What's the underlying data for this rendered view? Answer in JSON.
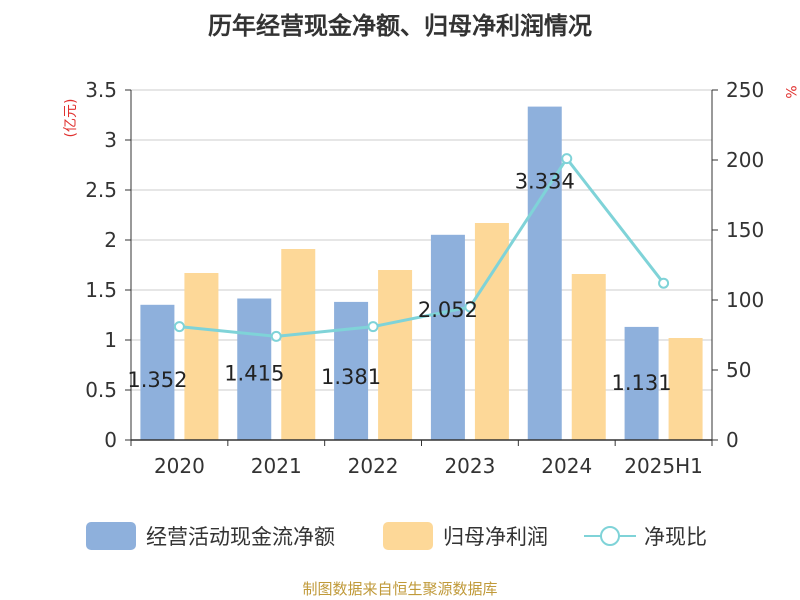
{
  "title": "历年经营现金净额、归母净利润情况",
  "source": "制图数据来自恒生聚源数据库",
  "colors": {
    "cash": "#8eb0dc",
    "profit": "#fdd898",
    "ratio": "#7fd3d8",
    "axis_unit": "#e0312f",
    "source": "#c09a3a"
  },
  "chart_data": {
    "type": "bar",
    "categories": [
      "2020",
      "2021",
      "2022",
      "2023",
      "2024",
      "2025H1"
    ],
    "left_axis": {
      "unit": "(亿元)",
      "ylim": [
        0,
        3.5
      ],
      "ticks": [
        "0",
        "0.5",
        "1",
        "1.5",
        "2",
        "2.5",
        "3",
        "3.5"
      ]
    },
    "right_axis": {
      "unit": "%",
      "ylim": [
        0,
        250
      ],
      "ticks": [
        "0",
        "50",
        "100",
        "150",
        "200",
        "250"
      ]
    },
    "series": [
      {
        "name": "经营活动现金流净额",
        "type": "bar",
        "axis": "left",
        "values": [
          1.352,
          1.415,
          1.381,
          2.052,
          3.334,
          1.131
        ],
        "labels": [
          "1.352",
          "1.415",
          "1.381",
          "2.052",
          "3.334",
          "1.131"
        ]
      },
      {
        "name": "归母净利润",
        "type": "bar",
        "axis": "left",
        "values": [
          1.67,
          1.91,
          1.7,
          2.17,
          1.66,
          1.02
        ]
      },
      {
        "name": "净现比",
        "type": "line",
        "axis": "right",
        "values": [
          81,
          74,
          81,
          95,
          201,
          112
        ]
      }
    ],
    "legend": [
      "经营活动现金流净额",
      "归母净利润",
      "净现比"
    ],
    "legend_position": "bottom",
    "grid": true
  }
}
